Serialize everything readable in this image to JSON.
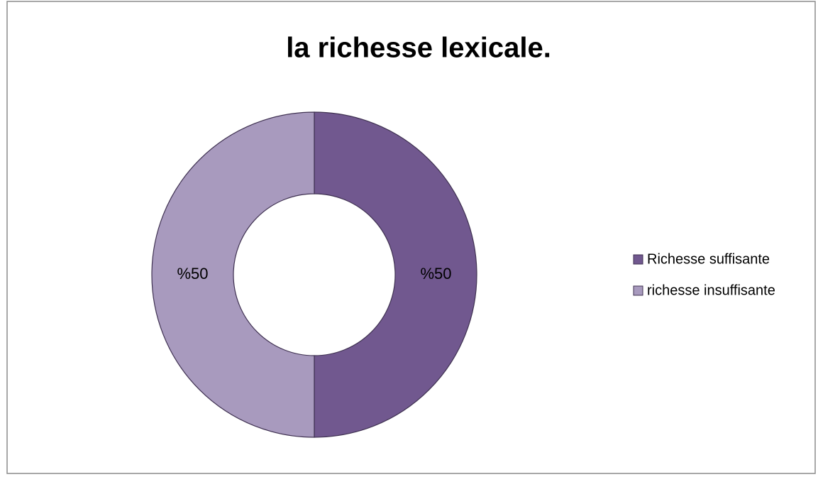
{
  "chart_data": {
    "type": "donut",
    "title": "la richesse lexicale.",
    "categories": [
      "Richesse suffisante",
      "richesse insuffisante"
    ],
    "values": [
      50,
      50
    ],
    "value_labels": [
      "%50",
      "%50"
    ],
    "colors": [
      "#71588f",
      "#a89abe"
    ],
    "legend": "right"
  }
}
